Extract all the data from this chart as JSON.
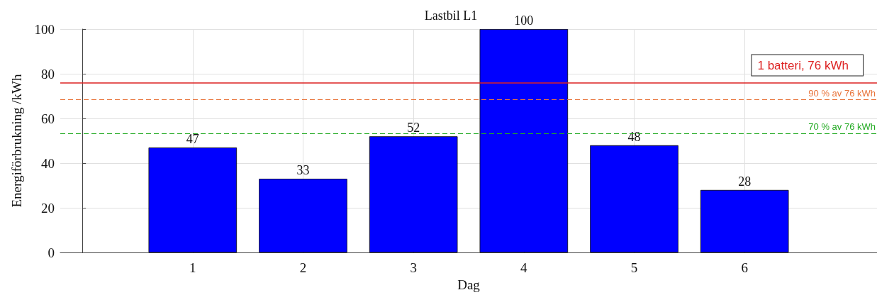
{
  "chart_data": {
    "type": "bar",
    "title": "Lastbil L1",
    "xlabel": "Dag",
    "ylabel": "Energiförbrukning /kWh",
    "x": [
      1,
      2,
      3,
      4,
      5,
      6
    ],
    "series": [
      {
        "color": "#0000ff",
        "values": [
          47,
          33,
          52,
          100,
          48,
          28
        ]
      }
    ],
    "xlim": [
      -0.2,
      7.2
    ],
    "xticks": [
      1,
      2,
      3,
      4,
      5,
      6
    ],
    "ylim": [
      0,
      100
    ],
    "yticks": [
      0,
      20,
      40,
      60,
      80,
      100
    ],
    "grid": true,
    "data_labels": true,
    "ref_lines": [
      {
        "axis": "y",
        "value": 76,
        "label": "1 batteri, 76 kWh",
        "color": "#dd2222",
        "line_style": "solid"
      },
      {
        "axis": "y",
        "value": 68.4,
        "label": "90 % av 76 kWh",
        "color": "#e8743b",
        "line_style": "dashed"
      },
      {
        "axis": "y",
        "value": 53.2,
        "label": "70 % av 76 kWh",
        "color": "#22aa22",
        "line_style": "dashed"
      }
    ]
  }
}
